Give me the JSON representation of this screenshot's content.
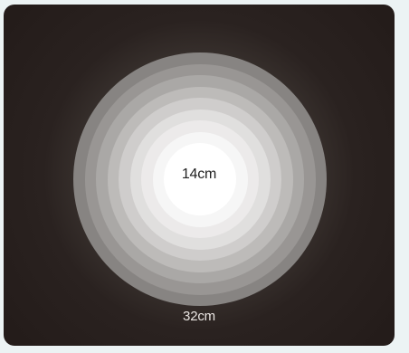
{
  "diagram": {
    "inner_label": "14cm",
    "outer_label": "32cm",
    "ring_colors": [
      "#878482",
      "#999694",
      "#aaa8a6",
      "#bdbbb9",
      "#cfcdcc",
      "#e0dfde",
      "#eceaea",
      "#f6f6f6",
      "#ffffff"
    ]
  }
}
